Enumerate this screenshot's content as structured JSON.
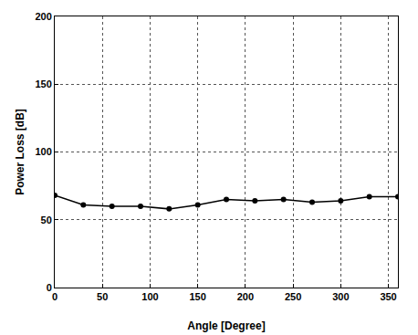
{
  "chart_data": {
    "type": "line",
    "x": [
      0,
      30,
      60,
      90,
      120,
      150,
      180,
      210,
      240,
      270,
      300,
      330,
      360
    ],
    "values": [
      68,
      61,
      60,
      60,
      58,
      61,
      65,
      64,
      65,
      63,
      64,
      67,
      67
    ],
    "color": "#000000",
    "marker": "circle",
    "line_style": "solid",
    "x_label": "Angle [Degree]",
    "y_label": "Power Loss [dB]",
    "xlim": [
      0,
      360
    ],
    "xticks": [
      0,
      50,
      100,
      150,
      200,
      250,
      300,
      350
    ],
    "ylim": [
      0,
      200
    ],
    "yticks": [
      0,
      50,
      100,
      150,
      200
    ],
    "grid": true
  }
}
